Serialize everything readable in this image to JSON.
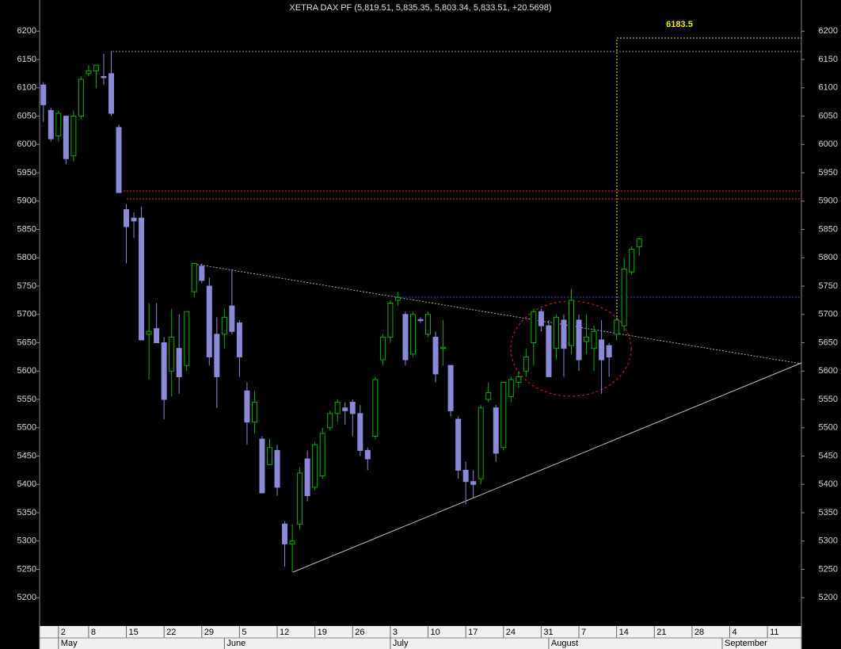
{
  "chart_data": {
    "type": "candlestick",
    "title": "XETRA DAX PF (5,819.51, 5,835.35, 5,803.34, 5,833.51, +20.5698)",
    "annotation": "6183.5",
    "categories": [
      null,
      null,
      null,
      null,
      null,
      null,
      null,
      null,
      null,
      null,
      null,
      null,
      null,
      null,
      null,
      null,
      null,
      null,
      null,
      null,
      null,
      null,
      null,
      null,
      null,
      null,
      null,
      null,
      null,
      null,
      null,
      null,
      null,
      null,
      null,
      null,
      null,
      null,
      null,
      null,
      null,
      null,
      null,
      null,
      null,
      null,
      null,
      null,
      null,
      null,
      null,
      null,
      null,
      null,
      null,
      null,
      null,
      null,
      null,
      null,
      null,
      null,
      null,
      null,
      null,
      null,
      null,
      null,
      null,
      null,
      null,
      null,
      null,
      null,
      null,
      null,
      null,
      null,
      null,
      null
    ],
    "open": [
      6105,
      6060,
      6015,
      6050,
      5980,
      6050,
      6125,
      6130,
      6120,
      6125,
      6030,
      5885,
      5870,
      5870,
      5665,
      5675,
      5650,
      5600,
      5640,
      5610,
      5740,
      5785,
      5750,
      5665,
      5665,
      5715,
      5685,
      5565,
      5510,
      5480,
      5435,
      5460,
      5330,
      5295,
      5330,
      5445,
      5395,
      5415,
      5500,
      5525,
      5535,
      5545,
      5525,
      5460,
      5485,
      5620,
      5660,
      5725,
      5700,
      5630,
      5691,
      5665,
      5660,
      5640,
      5610,
      5515,
      5425,
      5405,
      5410,
      5550,
      5535,
      5465,
      5555,
      5580,
      5600,
      5650,
      5705,
      5680,
      5640,
      5690,
      5645,
      5690,
      5652,
      5640,
      5655,
      5645,
      5665,
      5680,
      5775,
      5819.51
    ],
    "high": [
      6110,
      6065,
      6060,
      6050,
      6060,
      6120,
      6140,
      6140,
      6160,
      6165,
      6035,
      5895,
      5880,
      5890,
      5720,
      5720,
      5660,
      5710,
      5700,
      5705,
      5790,
      5790,
      5765,
      5695,
      5710,
      5780,
      5690,
      5580,
      5565,
      5485,
      5480,
      5470,
      5335,
      5330,
      5430,
      5460,
      5475,
      5500,
      5530,
      5550,
      5545,
      5550,
      5540,
      5465,
      5590,
      5665,
      5725,
      5740,
      5705,
      5705,
      5695,
      5705,
      5670,
      5690,
      5610,
      5520,
      5440,
      5425,
      5540,
      5580,
      5540,
      5580,
      5590,
      5600,
      5640,
      5710,
      5710,
      5690,
      5700,
      5700,
      5745,
      5700,
      5700,
      5680,
      5690,
      5650,
      5695,
      5800,
      5820,
      5835.35
    ],
    "low": [
      6040,
      6005,
      6005,
      5965,
      5970,
      6045,
      6120,
      6100,
      6105,
      6050,
      5915,
      5790,
      5835,
      5655,
      5585,
      5650,
      5515,
      5555,
      5560,
      5600,
      5730,
      5755,
      5610,
      5535,
      5640,
      5665,
      5590,
      5470,
      5490,
      5385,
      5435,
      5380,
      5255,
      5245,
      5320,
      5370,
      5390,
      5410,
      5495,
      5510,
      5505,
      5485,
      5450,
      5425,
      5480,
      5610,
      5650,
      5715,
      5610,
      5625,
      5685,
      5660,
      5580,
      5610,
      5520,
      5410,
      5365,
      5375,
      5400,
      5545,
      5440,
      5460,
      5545,
      5570,
      5590,
      5610,
      5670,
      5590,
      5620,
      5590,
      5630,
      5600,
      5630,
      5600,
      5560,
      5590,
      5655,
      5670,
      5770,
      5803.34
    ],
    "close": [
      6070,
      6010,
      6055,
      5975,
      6050,
      6115,
      6130,
      6140,
      6118,
      6055,
      5915,
      5855,
      5865,
      5655,
      5670,
      5650,
      5550,
      5660,
      5590,
      5705,
      5790,
      5760,
      5625,
      5590,
      5695,
      5670,
      5625,
      5510,
      5545,
      5385,
      5465,
      5395,
      5295,
      5300,
      5420,
      5380,
      5470,
      5490,
      5525,
      5545,
      5530,
      5525,
      5460,
      5445,
      5585,
      5660,
      5720,
      5730,
      5620,
      5700,
      5689,
      5700,
      5595,
      5642,
      5530,
      5425,
      5405,
      5400,
      5535,
      5562,
      5455,
      5580,
      5585,
      5590,
      5625,
      5705,
      5680,
      5590,
      5695,
      5640,
      5725,
      5620,
      5660,
      5670,
      5620,
      5625,
      5690,
      5780,
      5815,
      5833.51
    ],
    "up_color": "#00b400",
    "down_color": "#8a8ad8",
    "xlim": [
      -0.5,
      100.5
    ],
    "xticks": [
      {
        "value": 2,
        "label": "2"
      },
      {
        "value": 6,
        "label": "8"
      },
      {
        "value": 11,
        "label": "15"
      },
      {
        "value": 16,
        "label": "22"
      },
      {
        "value": 21,
        "label": "29"
      },
      {
        "value": 26,
        "label": "5"
      },
      {
        "value": 31,
        "label": "12"
      },
      {
        "value": 36,
        "label": "19"
      },
      {
        "value": 41,
        "label": "26"
      },
      {
        "value": 46,
        "label": "3"
      },
      {
        "value": 51,
        "label": "10"
      },
      {
        "value": 56,
        "label": "17"
      },
      {
        "value": 61,
        "label": "24"
      },
      {
        "value": 66,
        "label": "31"
      },
      {
        "value": 71,
        "label": "7"
      },
      {
        "value": 76,
        "label": "14"
      },
      {
        "value": 81,
        "label": "21"
      },
      {
        "value": 86,
        "label": "28"
      },
      {
        "value": 91,
        "label": "4"
      },
      {
        "value": 96,
        "label": "11"
      }
    ],
    "month_ticks": [
      {
        "value": 2,
        "label": "May"
      },
      {
        "value": 24,
        "label": "June"
      },
      {
        "value": 46,
        "label": "July"
      },
      {
        "value": 67,
        "label": "August"
      },
      {
        "value": 90,
        "label": "September"
      }
    ],
    "ylim": [
      5150,
      6255
    ],
    "yticks": [
      5200,
      5250,
      5300,
      5350,
      5400,
      5450,
      5500,
      5550,
      5600,
      5650,
      5700,
      5750,
      5800,
      5850,
      5900,
      5950,
      6000,
      6050,
      6100,
      6150,
      6200
    ]
  }
}
